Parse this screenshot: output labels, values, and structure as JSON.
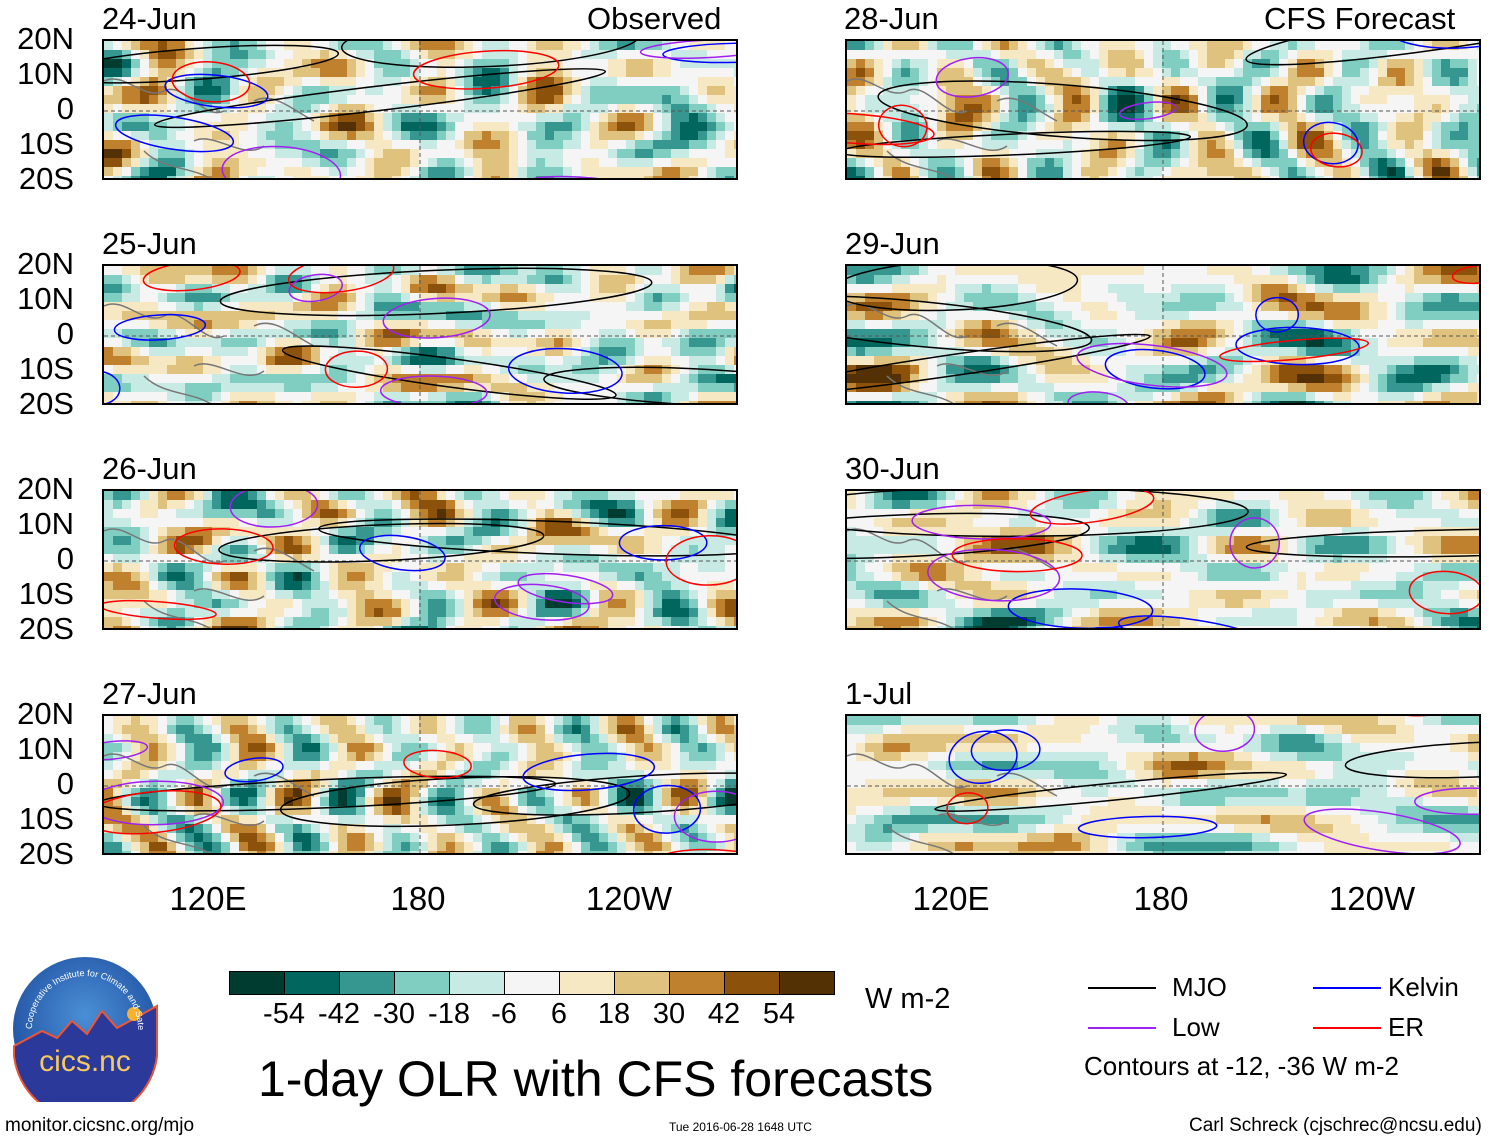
{
  "left_header": {
    "first_date": "24-Jun",
    "label": "Observed"
  },
  "right_header": {
    "first_date": "28-Jun",
    "label": "CFS Forecast"
  },
  "panels": [
    {
      "date": "24-Jun",
      "column": "left",
      "row": 0
    },
    {
      "date": "25-Jun",
      "column": "left",
      "row": 1
    },
    {
      "date": "26-Jun",
      "column": "left",
      "row": 2
    },
    {
      "date": "27-Jun",
      "column": "left",
      "row": 3
    },
    {
      "date": "28-Jun",
      "column": "right",
      "row": 0
    },
    {
      "date": "29-Jun",
      "column": "right",
      "row": 1
    },
    {
      "date": "30-Jun",
      "column": "right",
      "row": 2
    },
    {
      "date": "1-Jul",
      "column": "right",
      "row": 3
    }
  ],
  "lat_labels": [
    "20N",
    "10N",
    "0",
    "10S",
    "20S"
  ],
  "lon_labels": [
    "120E",
    "180",
    "120W"
  ],
  "colorbar": {
    "labels": [
      "-54",
      "-42",
      "-30",
      "-18",
      "-6",
      "6",
      "18",
      "30",
      "42",
      "54"
    ],
    "colors": [
      "#003c30",
      "#01665e",
      "#35978f",
      "#80cdc1",
      "#c7eae5",
      "#f5f5f5",
      "#f6e8c3",
      "#dfc27d",
      "#bf812d",
      "#8c510a",
      "#543005"
    ],
    "units": "W m-2"
  },
  "title": "1-day OLR with CFS forecasts",
  "legend": {
    "items": [
      {
        "label": "MJO",
        "color": "#000000"
      },
      {
        "label": "Kelvin",
        "color": "#0000ff"
      },
      {
        "label": "Low",
        "color": "#a020f0"
      },
      {
        "label": "ER",
        "color": "#ff0000"
      }
    ],
    "note": "Contours at -12, -36 W m-2"
  },
  "logo": {
    "text": "cics.nc",
    "ring_text": "Cooperative Institute for Climate and Satellites"
  },
  "footer": {
    "url": "monitor.cicsnc.org/mjo",
    "timestamp": "Tue 2016-06-28 1648 UTC",
    "credit": "Carl Schreck (cjschrec@ncsu.edu)"
  }
}
